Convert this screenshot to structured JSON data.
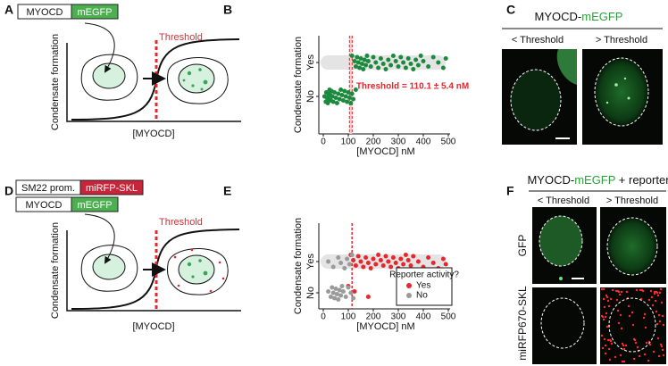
{
  "panel_a": {
    "letter": "A",
    "construct": [
      "MYOCD",
      "mEGFP"
    ],
    "threshold": "Threshold",
    "y_label": "Condensate formation",
    "x_label": "[MYOCD]"
  },
  "panel_c": {
    "letter": "C",
    "title": [
      "MYOCD-",
      "mEGFP"
    ],
    "columns": [
      "< Threshold",
      "> Threshold"
    ]
  },
  "panel_d": {
    "letter": "D",
    "constructs": [
      [
        "SM22 prom.",
        "miRFP-SKL"
      ],
      [
        "MYOCD",
        "mEGFP"
      ]
    ],
    "threshold": "Threshold",
    "y_label": "Condensate formation",
    "x_label": "[MYOCD]"
  },
  "panel_f": {
    "letter": "F",
    "title": [
      "MYOCD-",
      "mEGFP",
      " + reporter"
    ],
    "columns": [
      "< Threshold",
      "> Threshold"
    ],
    "rows": [
      "GFP",
      "miRFP670-SKL"
    ]
  },
  "chart_data": [
    {
      "type": "swarm",
      "panel_label": "B",
      "y_label": "Condensate formation",
      "x_label": "[MYOCD] nM",
      "categories": [
        "No",
        "Yes"
      ],
      "xlim": [
        0,
        500
      ],
      "xticks": [
        0,
        100,
        200,
        300,
        400,
        500
      ],
      "threshold": 110.1,
      "threshold_error": 5.4,
      "annotation": "Threshold = 110.1 ± 5.4 nM",
      "series": [
        {
          "color": "#1b8a3d",
          "x": [
            115,
            125,
            130,
            135,
            140,
            145,
            150,
            155,
            160,
            165,
            170,
            175,
            180,
            190,
            200,
            210,
            220,
            230,
            240,
            250,
            260,
            270,
            280,
            290,
            300,
            310,
            320,
            330,
            340,
            350,
            360,
            370,
            380,
            390,
            400,
            420,
            440,
            460,
            480,
            490
          ],
          "y": [
            "Yes",
            "Yes",
            "Yes",
            "Yes",
            "Yes",
            "Yes",
            "Yes",
            "Yes",
            "Yes",
            "Yes",
            "Yes",
            "Yes",
            "Yes",
            "Yes",
            "Yes",
            "Yes",
            "Yes",
            "Yes",
            "Yes",
            "Yes",
            "Yes",
            "Yes",
            "Yes",
            "Yes",
            "Yes",
            "Yes",
            "Yes",
            "Yes",
            "Yes",
            "Yes",
            "Yes",
            "Yes",
            "Yes",
            "Yes",
            "Yes",
            "Yes",
            "Yes",
            "Yes",
            "Yes",
            "Yes"
          ]
        },
        {
          "color": "#1b8a3d",
          "x": [
            5,
            10,
            12,
            15,
            18,
            20,
            22,
            25,
            28,
            30,
            33,
            36,
            40,
            45,
            50,
            55,
            60,
            65,
            70,
            75,
            80,
            85,
            90,
            95,
            100,
            105,
            110,
            115,
            120,
            130
          ],
          "y": [
            "No",
            "No",
            "No",
            "No",
            "No",
            "No",
            "No",
            "No",
            "No",
            "No",
            "No",
            "No",
            "No",
            "No",
            "No",
            "No",
            "No",
            "No",
            "No",
            "No",
            "No",
            "No",
            "No",
            "No",
            "No",
            "No",
            "No",
            "No",
            "No",
            "No"
          ]
        }
      ]
    },
    {
      "type": "swarm",
      "panel_label": "E",
      "y_label": "Condensate formation",
      "x_label": "[MYOCD] nM",
      "categories": [
        "No",
        "Yes"
      ],
      "xlim": [
        0,
        500
      ],
      "xticks": [
        0,
        100,
        200,
        300,
        400,
        500
      ],
      "threshold": 115,
      "legend": "lower right",
      "legend_title": "Reporter activity?",
      "series": [
        {
          "name": "Yes",
          "color": "#e8262b",
          "x": [
            110,
            120,
            130,
            140,
            150,
            160,
            170,
            180,
            190,
            200,
            210,
            220,
            230,
            240,
            250,
            260,
            270,
            280,
            290,
            300,
            310,
            320,
            330,
            340,
            350,
            360,
            380,
            400,
            420,
            440,
            460,
            480,
            490,
            100,
            125,
            180
          ],
          "y": [
            "Yes",
            "Yes",
            "Yes",
            "Yes",
            "Yes",
            "Yes",
            "Yes",
            "Yes",
            "Yes",
            "Yes",
            "Yes",
            "Yes",
            "Yes",
            "Yes",
            "Yes",
            "Yes",
            "Yes",
            "Yes",
            "Yes",
            "Yes",
            "Yes",
            "Yes",
            "Yes",
            "Yes",
            "Yes",
            "Yes",
            "Yes",
            "Yes",
            "Yes",
            "Yes",
            "Yes",
            "Yes",
            "Yes",
            "No",
            "No",
            "No"
          ]
        },
        {
          "name": "No",
          "color": "#9a9a9a",
          "x": [
            20,
            40,
            60,
            70,
            85,
            95,
            105,
            115,
            20,
            30,
            35,
            40,
            45,
            50,
            55,
            60,
            65,
            70,
            75,
            80,
            90,
            100,
            110,
            120
          ],
          "y": [
            "Yes",
            "Yes",
            "Yes",
            "Yes",
            "Yes",
            "Yes",
            "Yes",
            "Yes",
            "No",
            "No",
            "No",
            "No",
            "No",
            "No",
            "No",
            "No",
            "No",
            "No",
            "No",
            "No",
            "No",
            "No",
            "No",
            "No"
          ]
        }
      ]
    }
  ]
}
